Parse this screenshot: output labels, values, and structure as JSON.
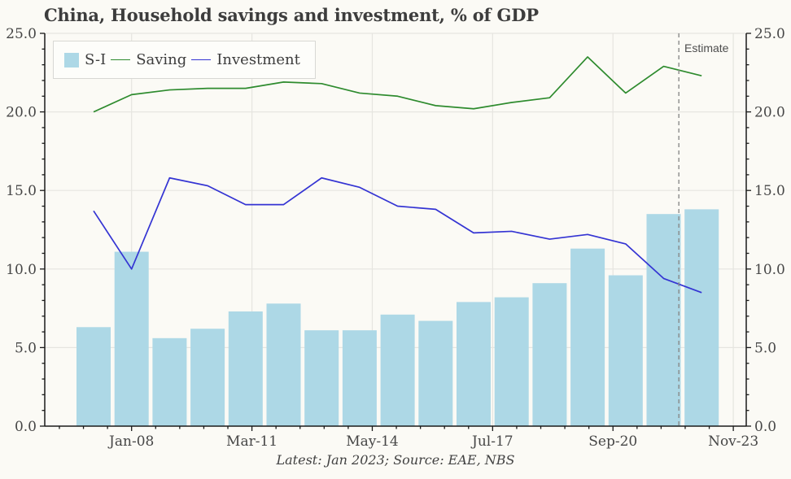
{
  "title": "China, Household savings and investment, % of GDP",
  "footer": "Latest: Jan 2023; Source: EAE, NBS",
  "estimate_label": "Estimate",
  "legend": {
    "si": "S-I",
    "saving": "Saving",
    "investment": "Investment"
  },
  "colors": {
    "background": "#fbfaf5",
    "bar": "#add8e6",
    "saving": "#2e8b2e",
    "investment": "#3434d3",
    "grid": "#e6e5e0",
    "spine": "#1a1a1a",
    "dashed": "#8a8a8a",
    "text": "#464646"
  },
  "chart_data": {
    "type": "bar+line",
    "title": "China, Household savings and investment, % of GDP",
    "x_years": [
      2007,
      2008,
      2009,
      2010,
      2011,
      2012,
      2013,
      2014,
      2015,
      2016,
      2017,
      2018,
      2019,
      2020,
      2021,
      2022,
      2023
    ],
    "series": [
      {
        "name": "S-I",
        "type": "bar",
        "values": [
          6.3,
          11.1,
          5.6,
          6.2,
          7.3,
          7.8,
          6.1,
          6.1,
          7.1,
          6.7,
          7.9,
          8.2,
          9.1,
          11.3,
          9.6,
          13.5,
          13.8
        ]
      },
      {
        "name": "Saving",
        "type": "line",
        "values": [
          20.0,
          21.1,
          21.4,
          21.5,
          21.5,
          21.9,
          21.8,
          21.2,
          21.0,
          20.4,
          20.2,
          20.6,
          20.9,
          23.5,
          21.2,
          22.9,
          22.3
        ]
      },
      {
        "name": "Investment",
        "type": "line",
        "values": [
          13.7,
          10.0,
          15.8,
          15.3,
          14.1,
          14.1,
          15.8,
          15.2,
          14.0,
          13.8,
          12.3,
          12.4,
          11.9,
          12.2,
          11.6,
          9.4,
          8.5
        ]
      }
    ],
    "x_tick_labels": [
      "Jan-08",
      "Mar-11",
      "May-14",
      "Jul-17",
      "Sep-20",
      "Nov-23"
    ],
    "x_tick_positions": [
      2008.0,
      2011.1667,
      2014.3333,
      2017.5,
      2020.6667,
      2023.8333
    ],
    "y_ticks": [
      0,
      5,
      10,
      15,
      20,
      25
    ],
    "y_tick_labels": [
      "0.0",
      "5.0",
      "10.0",
      "15.0",
      "20.0",
      "25.0"
    ],
    "ylim": [
      0,
      25
    ],
    "grid": true,
    "legend_position": "top-left",
    "estimate_line_year": 2022.4
  }
}
